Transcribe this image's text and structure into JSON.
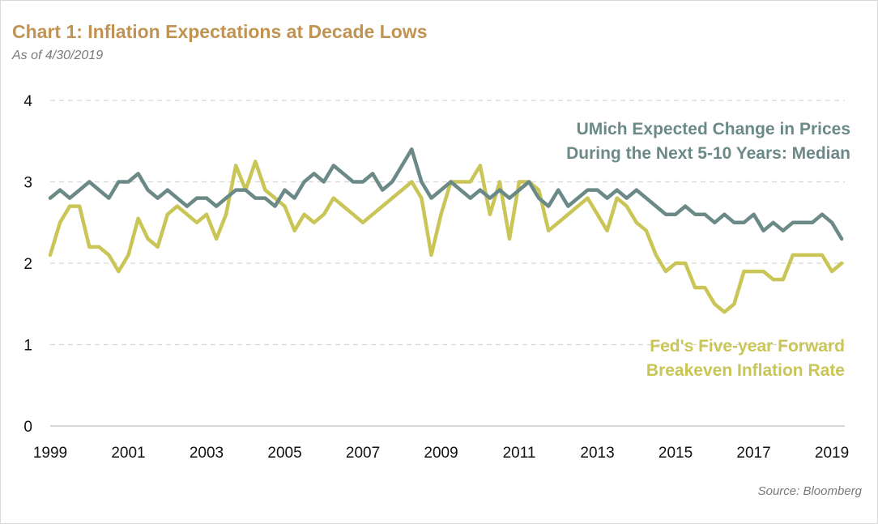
{
  "header": {
    "title": "Chart 1: Inflation Expectations at Decade Lows",
    "subtitle": "As of 4/30/2019"
  },
  "footer": {
    "source": "Source: Bloomberg"
  },
  "chart_data": {
    "type": "line",
    "title": "Chart 1: Inflation Expectations at Decade Lows",
    "subtitle": "As of 4/30/2019",
    "xlabel": "",
    "ylabel": "",
    "xlim": [
      1999,
      2019.33
    ],
    "ylim": [
      0,
      4
    ],
    "yticks": [
      0,
      1,
      2,
      3,
      4
    ],
    "xticks": [
      1999,
      2001,
      2003,
      2005,
      2007,
      2009,
      2011,
      2013,
      2015,
      2017,
      2019
    ],
    "grid": {
      "horizontal": true,
      "style": "dashed"
    },
    "legend": "inline annotations",
    "colors": {
      "umich": "#6b8a87",
      "breakeven": "#c9c556"
    },
    "annotations": [
      {
        "series": "umich",
        "lines": [
          "UMich Expected Change in Prices",
          "During the Next 5-10 Years: Median"
        ]
      },
      {
        "series": "breakeven",
        "lines": [
          "Fed's Five-year Forward",
          "Breakeven Inflation Rate"
        ]
      }
    ],
    "series": [
      {
        "name": "UMich Expected Change in Prices During the Next 5-10 Years: Median",
        "color": "#6b8a87",
        "x": [
          1999.0,
          1999.25,
          1999.5,
          1999.75,
          2000.0,
          2000.25,
          2000.5,
          2000.75,
          2001.0,
          2001.25,
          2001.5,
          2001.75,
          2002.0,
          2002.25,
          2002.5,
          2002.75,
          2003.0,
          2003.25,
          2003.5,
          2003.75,
          2004.0,
          2004.25,
          2004.5,
          2004.75,
          2005.0,
          2005.25,
          2005.5,
          2005.75,
          2006.0,
          2006.25,
          2006.5,
          2006.75,
          2007.0,
          2007.25,
          2007.5,
          2007.75,
          2008.0,
          2008.25,
          2008.5,
          2008.75,
          2009.0,
          2009.25,
          2009.5,
          2009.75,
          2010.0,
          2010.25,
          2010.5,
          2010.75,
          2011.0,
          2011.25,
          2011.5,
          2011.75,
          2012.0,
          2012.25,
          2012.5,
          2012.75,
          2013.0,
          2013.25,
          2013.5,
          2013.75,
          2014.0,
          2014.25,
          2014.5,
          2014.75,
          2015.0,
          2015.25,
          2015.5,
          2015.75,
          2016.0,
          2016.25,
          2016.5,
          2016.75,
          2017.0,
          2017.25,
          2017.5,
          2017.75,
          2018.0,
          2018.25,
          2018.5,
          2018.75,
          2019.0,
          2019.25
        ],
        "values": [
          2.8,
          2.9,
          2.8,
          2.9,
          3.0,
          2.9,
          2.8,
          3.0,
          3.0,
          3.1,
          2.9,
          2.8,
          2.9,
          2.8,
          2.7,
          2.8,
          2.8,
          2.7,
          2.8,
          2.9,
          2.9,
          2.8,
          2.8,
          2.7,
          2.9,
          2.8,
          3.0,
          3.1,
          3.0,
          3.2,
          3.1,
          3.0,
          3.0,
          3.1,
          2.9,
          3.0,
          3.2,
          3.4,
          3.0,
          2.8,
          2.9,
          3.0,
          2.9,
          2.8,
          2.9,
          2.8,
          2.9,
          2.8,
          2.9,
          3.0,
          2.8,
          2.7,
          2.9,
          2.7,
          2.8,
          2.9,
          2.9,
          2.8,
          2.9,
          2.8,
          2.9,
          2.8,
          2.7,
          2.6,
          2.6,
          2.7,
          2.6,
          2.6,
          2.5,
          2.6,
          2.5,
          2.5,
          2.6,
          2.4,
          2.5,
          2.4,
          2.5,
          2.5,
          2.5,
          2.6,
          2.5,
          2.3
        ]
      },
      {
        "name": "Fed's Five-year Forward Breakeven Inflation Rate",
        "color": "#c9c556",
        "x": [
          1999.0,
          1999.25,
          1999.5,
          1999.75,
          2000.0,
          2000.25,
          2000.5,
          2000.75,
          2001.0,
          2001.25,
          2001.5,
          2001.75,
          2002.0,
          2002.25,
          2002.5,
          2002.75,
          2003.0,
          2003.25,
          2003.5,
          2003.75,
          2004.0,
          2004.25,
          2004.5,
          2004.75,
          2005.0,
          2005.25,
          2005.5,
          2005.75,
          2006.0,
          2006.25,
          2006.5,
          2006.75,
          2007.0,
          2007.25,
          2007.5,
          2007.75,
          2008.0,
          2008.25,
          2008.5,
          2008.75,
          2009.0,
          2009.25,
          2009.5,
          2009.75,
          2010.0,
          2010.25,
          2010.5,
          2010.75,
          2011.0,
          2011.25,
          2011.5,
          2011.75,
          2012.0,
          2012.25,
          2012.5,
          2012.75,
          2013.0,
          2013.25,
          2013.5,
          2013.75,
          2014.0,
          2014.25,
          2014.5,
          2014.75,
          2015.0,
          2015.25,
          2015.5,
          2015.75,
          2016.0,
          2016.25,
          2016.5,
          2016.75,
          2017.0,
          2017.25,
          2017.5,
          2017.75,
          2018.0,
          2018.25,
          2018.5,
          2018.75,
          2019.0,
          2019.25
        ],
        "values": [
          2.1,
          2.5,
          2.7,
          2.7,
          2.2,
          2.2,
          2.1,
          1.9,
          2.1,
          2.55,
          2.3,
          2.2,
          2.6,
          2.7,
          2.6,
          2.5,
          2.6,
          2.3,
          2.6,
          3.2,
          2.9,
          3.25,
          2.9,
          2.8,
          2.7,
          2.4,
          2.6,
          2.5,
          2.6,
          2.8,
          2.7,
          2.6,
          2.5,
          2.6,
          2.7,
          2.8,
          2.9,
          3.0,
          2.8,
          2.1,
          2.6,
          3.0,
          3.0,
          3.0,
          3.2,
          2.6,
          3.0,
          2.3,
          3.0,
          3.0,
          2.9,
          2.4,
          2.5,
          2.6,
          2.7,
          2.8,
          2.6,
          2.4,
          2.8,
          2.7,
          2.5,
          2.4,
          2.1,
          1.9,
          2.0,
          2.0,
          1.7,
          1.7,
          1.5,
          1.4,
          1.5,
          1.9,
          1.9,
          1.9,
          1.8,
          1.8,
          2.1,
          2.1,
          2.1,
          2.1,
          1.9,
          2.0
        ]
      }
    ]
  }
}
